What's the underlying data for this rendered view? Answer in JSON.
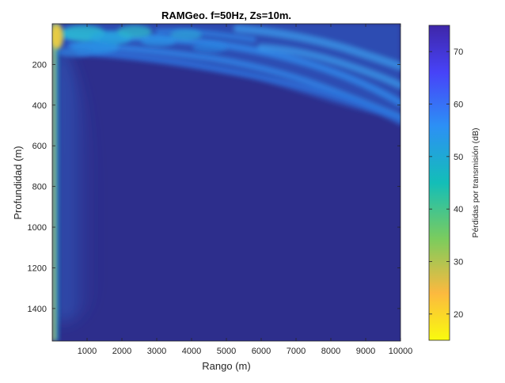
{
  "chart_data": {
    "type": "heatmap",
    "title": "RAMGeo. f=50Hz, Zs=10m.",
    "xlabel": "Rango (m)",
    "ylabel": "Profundidad (m)",
    "colorbar_label": "Pérdidas por transmisión (dB)",
    "colormap": "parula",
    "xlim": [
      0,
      10000
    ],
    "ylim": [
      0,
      1560
    ],
    "y_reversed": true,
    "clim": [
      15,
      75
    ],
    "x_ticks": [
      1000,
      2000,
      3000,
      4000,
      5000,
      6000,
      7000,
      8000,
      9000,
      10000
    ],
    "y_ticks": [
      200,
      400,
      600,
      800,
      1000,
      1200,
      1400
    ],
    "colorbar_ticks": [
      20,
      30,
      40,
      50,
      60,
      70
    ],
    "regions": [
      {
        "label": "saturated background (beyond colour limit)",
        "value_db": 75
      },
      {
        "label": "near-surface interference lobes",
        "range_m": [
          0,
          10000
        ],
        "depth_m": [
          0,
          500
        ],
        "value_db": [
          52,
          72
        ]
      },
      {
        "label": "near-source column",
        "range_m": [
          0,
          100
        ],
        "depth_m": [
          0,
          1560
        ],
        "value_db": [
          18,
          50
        ]
      },
      {
        "label": "faint vertical band",
        "range_m": [
          100,
          1300
        ],
        "depth_m": [
          150,
          1450
        ],
        "value_db": [
          62,
          72
        ]
      }
    ]
  },
  "colors": {
    "background": "#2d2e8c",
    "colormap_stops": [
      "#3e26a8",
      "#4743f8",
      "#2c90f5",
      "#13beb8",
      "#7ccc5d",
      "#fcb93f",
      "#f9fb0e"
    ]
  }
}
